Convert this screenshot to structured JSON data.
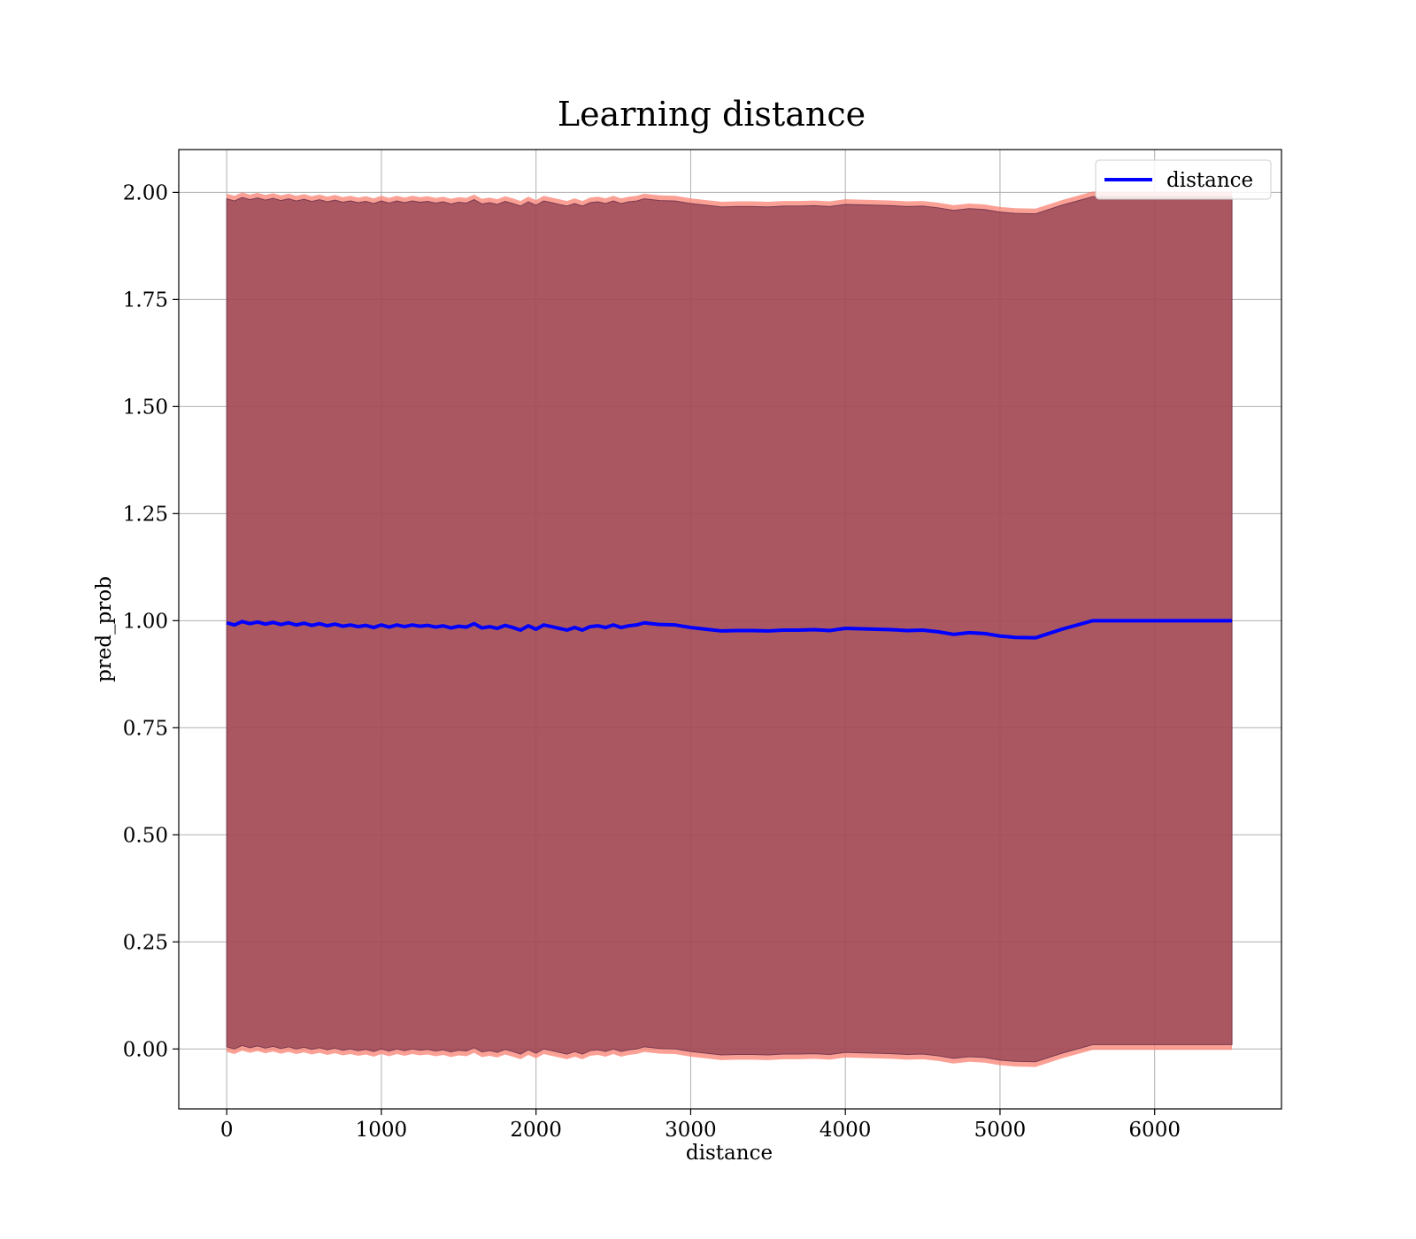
{
  "chart_data": {
    "type": "line",
    "title": "Learning distance",
    "xlabel": "distance",
    "ylabel": "pred_prob",
    "xlim": [
      -310,
      6820
    ],
    "ylim": [
      -0.14,
      2.1
    ],
    "xticks": [
      0,
      1000,
      2000,
      3000,
      4000,
      5000,
      6000
    ],
    "yticks": [
      0.0,
      0.25,
      0.5,
      0.75,
      1.0,
      1.25,
      1.5,
      1.75,
      2.0
    ],
    "ytick_labels": [
      "0.00",
      "0.25",
      "0.50",
      "0.75",
      "1.00",
      "1.25",
      "1.50",
      "1.75",
      "2.00"
    ],
    "grid": true,
    "legend": {
      "position": "top-right",
      "entries": [
        "distance"
      ]
    },
    "colors": {
      "line": "#0000ff",
      "band": "#8b3a4e",
      "band_edge": "#fa8072"
    },
    "series": [
      {
        "name": "distance",
        "x": [
          0,
          50,
          100,
          150,
          200,
          250,
          300,
          350,
          400,
          450,
          500,
          550,
          600,
          650,
          700,
          750,
          800,
          850,
          900,
          950,
          1000,
          1050,
          1100,
          1150,
          1200,
          1250,
          1300,
          1350,
          1400,
          1450,
          1500,
          1550,
          1600,
          1650,
          1700,
          1750,
          1800,
          1850,
          1900,
          1950,
          2000,
          2050,
          2100,
          2150,
          2200,
          2250,
          2300,
          2350,
          2400,
          2450,
          2500,
          2550,
          2600,
          2650,
          2700,
          2750,
          2800,
          2900,
          3000,
          3100,
          3200,
          3300,
          3400,
          3500,
          3600,
          3700,
          3800,
          3900,
          4000,
          4100,
          4200,
          4300,
          4400,
          4500,
          4600,
          4700,
          4800,
          4900,
          5000,
          5100,
          5230,
          5400,
          5600,
          6000,
          6500
        ],
        "values": [
          0.995,
          0.99,
          0.998,
          0.993,
          0.997,
          0.992,
          0.996,
          0.991,
          0.995,
          0.99,
          0.994,
          0.989,
          0.993,
          0.988,
          0.992,
          0.987,
          0.99,
          0.986,
          0.989,
          0.984,
          0.99,
          0.985,
          0.99,
          0.986,
          0.99,
          0.987,
          0.989,
          0.985,
          0.988,
          0.983,
          0.987,
          0.985,
          0.993,
          0.983,
          0.986,
          0.982,
          0.989,
          0.984,
          0.978,
          0.988,
          0.98,
          0.99,
          0.986,
          0.982,
          0.978,
          0.984,
          0.978,
          0.986,
          0.988,
          0.984,
          0.99,
          0.984,
          0.988,
          0.99,
          0.995,
          0.993,
          0.991,
          0.99,
          0.984,
          0.98,
          0.976,
          0.977,
          0.977,
          0.976,
          0.978,
          0.978,
          0.979,
          0.977,
          0.982,
          0.981,
          0.98,
          0.979,
          0.977,
          0.978,
          0.974,
          0.968,
          0.972,
          0.97,
          0.964,
          0.961,
          0.96,
          0.98,
          1.0,
          1.0,
          1.0
        ]
      }
    ],
    "band": {
      "description_note": "",
      "upper_offset": 0.99,
      "lower_offset": -0.99
    }
  }
}
